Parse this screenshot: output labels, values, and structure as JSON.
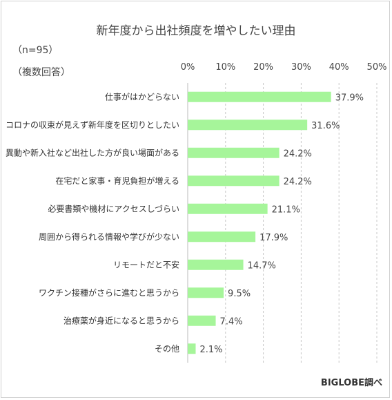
{
  "chart_data": {
    "type": "bar",
    "orientation": "horizontal",
    "title": "新年度から出社頻度を増やしたい理由",
    "notes": [
      "（n=95）",
      "（複数回答）"
    ],
    "source": "BIGLOBE調べ",
    "categories": [
      "仕事がはかどらない",
      "コロナの収束が見えず新年度を区切りとしたい",
      "異動や新入社など出社した方が良い場面がある",
      "在宅だと家事・育児負担が増える",
      "必要書類や機材にアクセスしづらい",
      "周囲から得られる情報や学びが少ない",
      "リモートだと不安",
      "ワクチン接種がさらに進むと思うから",
      "治療薬が身近になると思うから",
      "その他"
    ],
    "values": [
      37.9,
      31.6,
      24.2,
      24.2,
      21.1,
      17.9,
      14.7,
      9.5,
      7.4,
      2.1
    ],
    "value_labels": [
      "37.9%",
      "31.6%",
      "24.2%",
      "24.2%",
      "21.1%",
      "17.9%",
      "14.7%",
      "9.5%",
      "7.4%",
      "2.1%"
    ],
    "x_ticks": [
      "0%",
      "10%",
      "20%",
      "30%",
      "40%",
      "50%"
    ],
    "xlim": [
      0,
      50
    ],
    "grid": "vertical dashed",
    "bar_color": "#a6f59a"
  }
}
